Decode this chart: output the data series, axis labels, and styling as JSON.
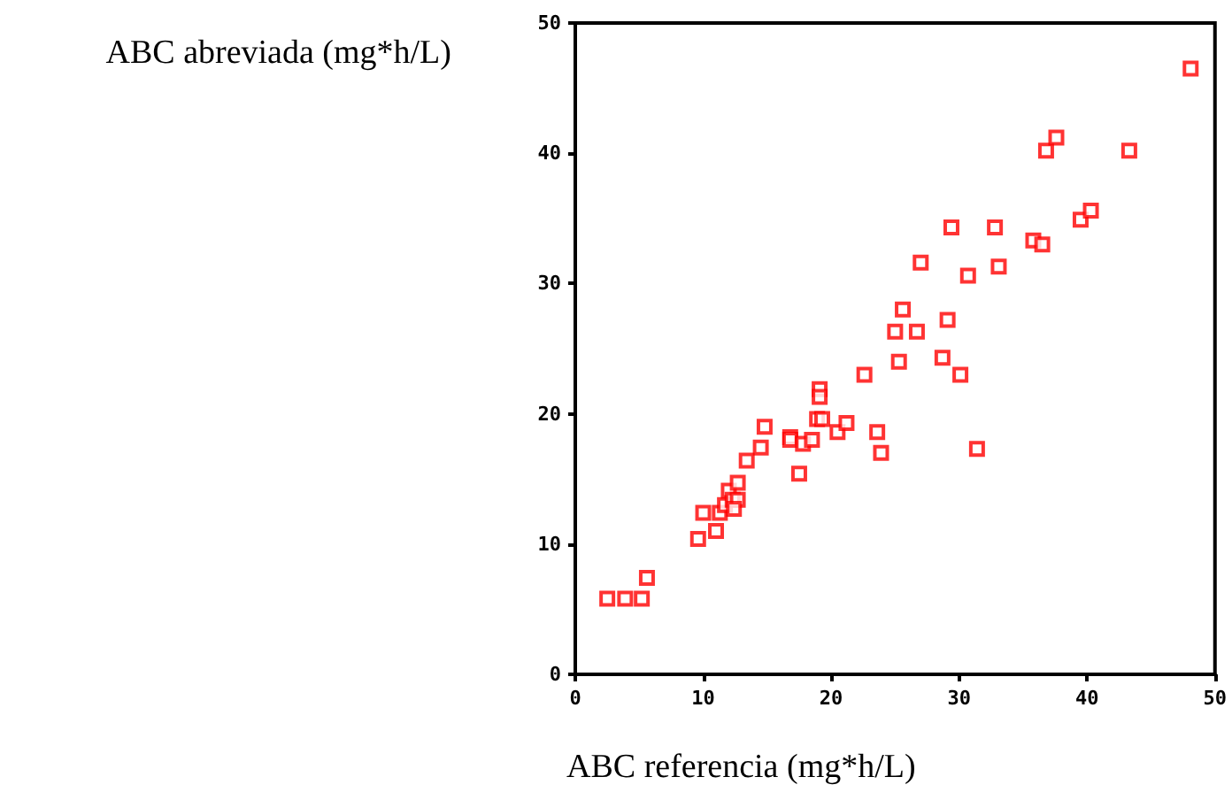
{
  "chart_data": {
    "type": "scatter",
    "xlabel": "ABC referencia (mg*h/L)",
    "ylabel": "ABC abreviada (mg*h/L)",
    "marker": "square",
    "grid": false,
    "xlim": [
      0,
      50
    ],
    "xticks": [
      0,
      10,
      20,
      30,
      40,
      50
    ],
    "ylim": [
      0,
      50
    ],
    "yticks": [
      0,
      10,
      20,
      30,
      40,
      50
    ],
    "series": [
      {
        "color": "#ff0000",
        "x": [
          2.5,
          3.9,
          5.2,
          5.6,
          9.6,
          10.0,
          11.0,
          11.3,
          11.7,
          12.0,
          12.3,
          12.7,
          12.4,
          12.7,
          13.4,
          14.5,
          14.8,
          16.8,
          16.8,
          17.8,
          18.5,
          17.5,
          18.9,
          19.3,
          19.1,
          19.1,
          20.5,
          21.2,
          22.6,
          23.6,
          23.9,
          31.4,
          25.3,
          25.0,
          26.7,
          28.7,
          30.1,
          29.1,
          25.6,
          27.0,
          30.7,
          33.1,
          29.4,
          32.8,
          35.8,
          36.5,
          39.5,
          40.3,
          36.8,
          37.6,
          43.3,
          48.1
        ],
        "values": [
          5.8,
          5.8,
          5.8,
          7.4,
          10.4,
          12.4,
          11.0,
          12.4,
          13.0,
          14.1,
          13.4,
          13.4,
          12.7,
          14.7,
          16.4,
          17.4,
          19.0,
          18.2,
          18.0,
          17.7,
          18.0,
          15.4,
          19.6,
          19.6,
          21.9,
          21.3,
          18.6,
          19.3,
          23.0,
          18.6,
          17.0,
          17.3,
          24.0,
          26.3,
          26.3,
          24.3,
          23.0,
          27.2,
          28.0,
          31.6,
          30.6,
          31.3,
          34.3,
          34.3,
          33.3,
          33.0,
          34.9,
          35.6,
          40.2,
          41.2,
          40.2,
          46.5
        ]
      }
    ]
  }
}
